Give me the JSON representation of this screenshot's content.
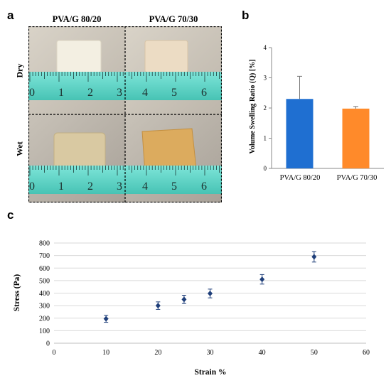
{
  "panels": {
    "a": "a",
    "b": "b",
    "c": "c"
  },
  "photos": {
    "columns": [
      "PVA/G 80/20",
      "PVA/G 70/30"
    ],
    "rows": [
      "Dry",
      "Wet"
    ],
    "ruler_left": [
      "0",
      "1",
      "2",
      "3"
    ],
    "ruler_right": [
      "4",
      "5",
      "6"
    ]
  },
  "colors": {
    "bar1": "#1f6fd1",
    "bar2": "#ff8a2a",
    "scatter": "#1f3f7a",
    "ruler": "#5fd6c8"
  },
  "chart_data": [
    {
      "type": "bar",
      "title": "",
      "categories": [
        "PVA/G 80/20",
        "PVA/G 70/30"
      ],
      "values": [
        2.3,
        1.98
      ],
      "errors": [
        0.75,
        0.07
      ],
      "xlabel": "",
      "ylabel": "Volume Swelling Ratio (Q) [%]",
      "ylim": [
        0,
        4
      ],
      "yticks": [
        "0",
        "1",
        "2",
        "3",
        "4"
      ],
      "grid": false
    },
    {
      "type": "scatter",
      "title": "",
      "x": [
        10,
        20,
        25,
        30,
        40,
        50
      ],
      "y": [
        195,
        300,
        350,
        397,
        510,
        690
      ],
      "errors": [
        28,
        30,
        33,
        35,
        38,
        42
      ],
      "xlabel": "Strain %",
      "ylabel": "Stress (Pa)",
      "xlim": [
        0,
        60
      ],
      "ylim": [
        0,
        800
      ],
      "xticks": [
        "0",
        "10",
        "20",
        "30",
        "40",
        "50",
        "60"
      ],
      "yticks": [
        "0",
        "100",
        "200",
        "300",
        "400",
        "500",
        "600",
        "700",
        "800"
      ],
      "grid": true
    }
  ]
}
